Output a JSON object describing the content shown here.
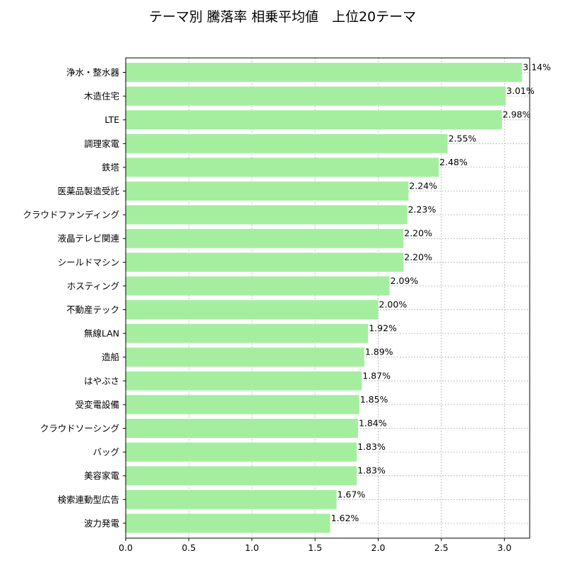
{
  "chart_data": {
    "type": "bar",
    "orientation": "horizontal",
    "title": "テーマ別 騰落率 相乗平均値　上位20テーマ",
    "xlabel": "",
    "ylabel": "",
    "xlim": [
      0,
      3.2
    ],
    "xticks": [
      "0.0",
      "0.5",
      "1.0",
      "1.5",
      "2.0",
      "2.5",
      "3.0"
    ],
    "grid": true,
    "bar_color": "#a5eea0",
    "categories": [
      "浄水・整水器",
      "木造住宅",
      "LTE",
      "調理家電",
      "鉄塔",
      "医薬品製造受託",
      "クラウドファンディング",
      "液晶テレビ関連",
      "シールドマシン",
      "ホスティング",
      "不動産テック",
      "無線LAN",
      "造船",
      "はやぶさ",
      "受変電設備",
      "クラウドソーシング",
      "バッグ",
      "美容家電",
      "検索連動型広告",
      "波力発電"
    ],
    "values": [
      3.14,
      3.01,
      2.98,
      2.55,
      2.48,
      2.24,
      2.23,
      2.2,
      2.2,
      2.09,
      2.0,
      1.92,
      1.89,
      1.87,
      1.85,
      1.84,
      1.83,
      1.83,
      1.67,
      1.62
    ],
    "value_labels": [
      "3.14%",
      "3.01%",
      "2.98%",
      "2.55%",
      "2.48%",
      "2.24%",
      "2.23%",
      "2.20%",
      "2.20%",
      "2.09%",
      "2.00%",
      "1.92%",
      "1.89%",
      "1.87%",
      "1.85%",
      "1.84%",
      "1.83%",
      "1.83%",
      "1.67%",
      "1.62%"
    ]
  }
}
